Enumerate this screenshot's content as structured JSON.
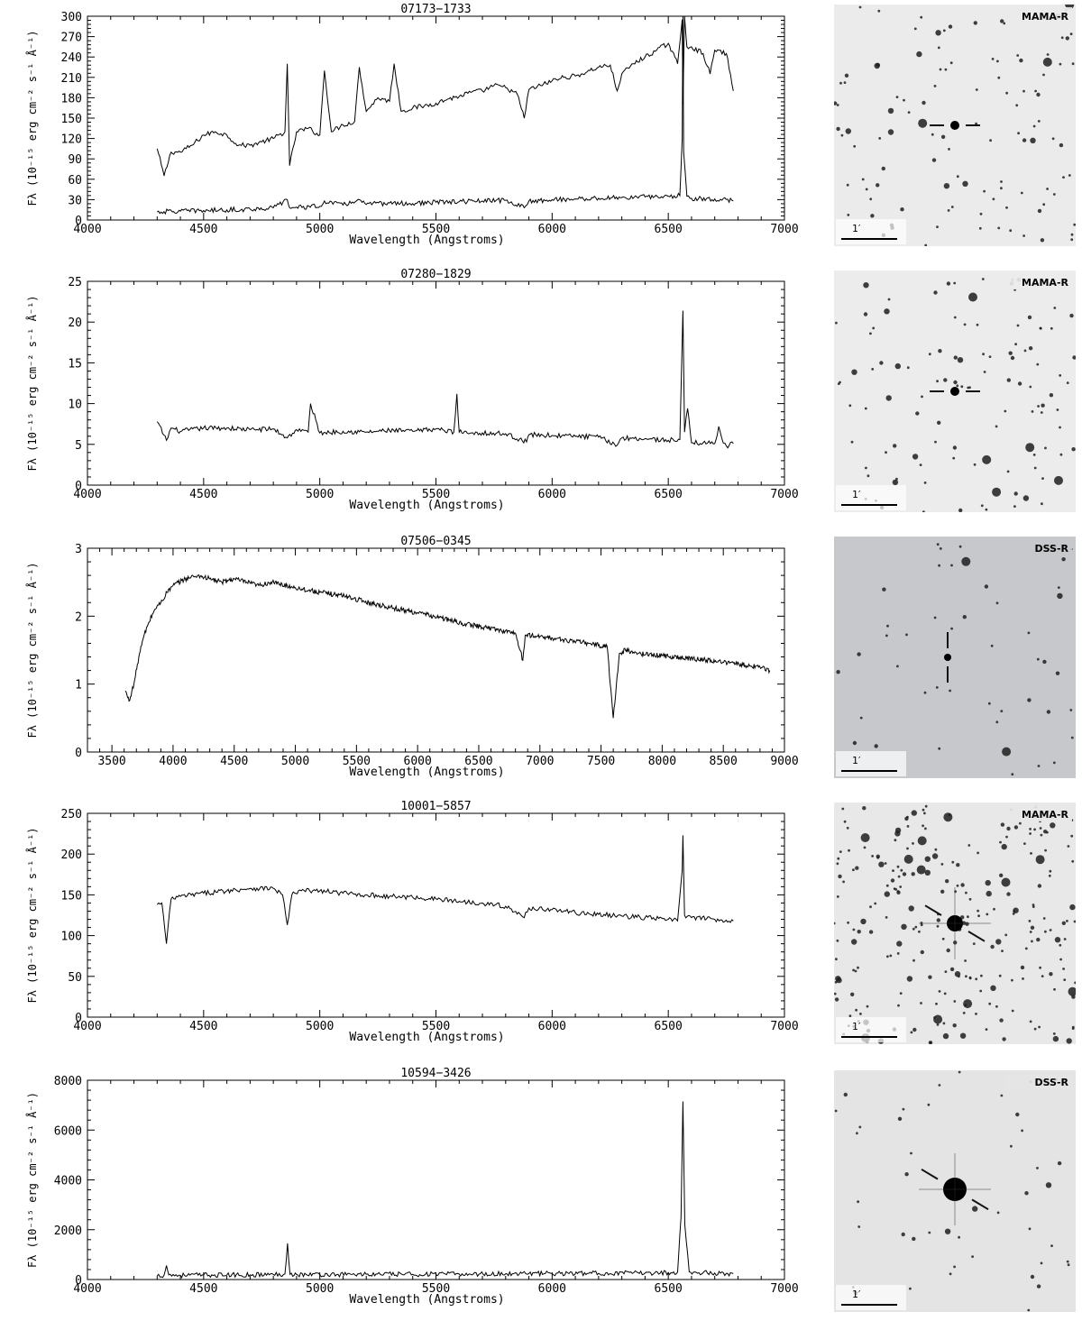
{
  "panels": [
    {
      "chart_data": {
        "type": "line",
        "title": "07173−1733",
        "xlabel": "Wavelength (Angstroms)",
        "ylabel": "Fλ (10⁻¹⁵ erg cm⁻² s⁻¹ Å⁻¹)",
        "xlim": [
          4000,
          7000
        ],
        "ylim": [
          0,
          300
        ],
        "xticks": [
          4000,
          4500,
          5000,
          5500,
          6000,
          6500,
          7000
        ],
        "yticks": [
          0,
          30,
          60,
          90,
          120,
          150,
          180,
          210,
          240,
          270,
          300
        ],
        "series": [
          {
            "x": [
              4300,
              4330,
              4360,
              4400,
              4450,
              4500,
              4550,
              4600,
              4650,
              4700,
              4750,
              4800,
              4850,
              4860,
              4870,
              4900,
              4950,
              5000,
              5020,
              5050,
              5100,
              5150,
              5170,
              5200,
              5250,
              5300,
              5320,
              5350,
              5400,
              5450,
              5500,
              5550,
              5600,
              5650,
              5700,
              5750,
              5800,
              5850,
              5880,
              5900,
              5950,
              6000,
              6050,
              6100,
              6150,
              6200,
              6250,
              6280,
              6300,
              6350,
              6400,
              6450,
              6500,
              6540,
              6560,
              6563,
              6570,
              6580,
              6600,
              6650,
              6680,
              6700,
              6750,
              6780
            ],
            "y": [
              105,
              65,
              100,
              100,
              110,
              125,
              130,
              125,
              110,
              110,
              115,
              120,
              130,
              230,
              80,
              130,
              135,
              125,
              220,
              130,
              140,
              145,
              225,
              160,
              180,
              175,
              230,
              160,
              165,
              168,
              172,
              178,
              182,
              188,
              190,
              198,
              195,
              185,
              150,
              192,
              198,
              205,
              210,
              212,
              218,
              225,
              228,
              190,
              215,
              230,
              240,
              250,
              260,
              230,
              295,
              170,
              300,
              255,
              255,
              245,
              215,
              250,
              245,
              190
            ]
          },
          {
            "x": [
              4300,
              4400,
              4500,
              4600,
              4700,
              4800,
              4860,
              4870,
              4900,
              5000,
              5020,
              5100,
              5170,
              5200,
              5300,
              5400,
              5500,
              5600,
              5700,
              5800,
              5880,
              5900,
              6000,
              6100,
              6200,
              6300,
              6400,
              6500,
              6550,
              6560,
              6563,
              6566,
              6580,
              6600,
              6700,
              6780
            ],
            "y": [
              12,
              13,
              14,
              15,
              16,
              18,
              30,
              18,
              19,
              20,
              28,
              22,
              30,
              23,
              25,
              24,
              26,
              27,
              28,
              29,
              18,
              28,
              30,
              31,
              32,
              33,
              34,
              35,
              36,
              120,
              300,
              100,
              35,
              32,
              31,
              28
            ]
          }
        ]
      },
      "finder": {
        "survey": "MAMA-R",
        "scale": "1′",
        "bg": "#ebebeb",
        "tick_style": "horizontal",
        "target_size": 5,
        "star_density": "medium"
      }
    },
    {
      "chart_data": {
        "type": "line",
        "title": "07280−1829",
        "xlabel": "Wavelength (Angstroms)",
        "ylabel": "Fλ (10⁻¹⁵ erg cm⁻² s⁻¹ Å⁻¹)",
        "xlim": [
          4000,
          7000
        ],
        "ylim": [
          0,
          25
        ],
        "xticks": [
          4000,
          4500,
          5000,
          5500,
          6000,
          6500,
          7000
        ],
        "yticks": [
          0,
          5,
          10,
          15,
          20,
          25
        ],
        "series": [
          {
            "x": [
              4300,
              4340,
              4360,
              4400,
              4500,
              4600,
              4700,
              4800,
              4860,
              4900,
              4950,
              4960,
              5000,
              5100,
              5200,
              5300,
              5400,
              5500,
              5577,
              5590,
              5600,
              5700,
              5800,
              5890,
              5900,
              6000,
              6100,
              6200,
              6280,
              6300,
              6400,
              6500,
              6550,
              6563,
              6570,
              6583,
              6600,
              6650,
              6700,
              6717,
              6730,
              6750,
              6780
            ],
            "y": [
              7.8,
              5.5,
              7,
              6.6,
              7,
              7,
              6.8,
              6.9,
              5.8,
              6.8,
              6.5,
              10,
              6.4,
              6.6,
              6.5,
              6.7,
              6.6,
              6.9,
              6.5,
              11.2,
              6.5,
              6.4,
              6.3,
              5.3,
              6.2,
              6.1,
              6.0,
              5.9,
              4.9,
              5.8,
              5.7,
              5.5,
              5.6,
              21.4,
              6.5,
              9.4,
              5.2,
              5.2,
              5.1,
              7.2,
              5.8,
              4.8,
              5.1
            ]
          }
        ]
      },
      "finder": {
        "survey": "MAMA-R",
        "scale": "1′",
        "bg": "#ececec",
        "tick_style": "horizontal",
        "target_size": 5,
        "star_density": "medium"
      }
    },
    {
      "chart_data": {
        "type": "line",
        "title": "07506−0345",
        "xlabel": "Wavelength (Angstroms)",
        "ylabel": "Fλ (10⁻¹⁵ erg cm⁻² s⁻¹ Å⁻¹)",
        "xlim": [
          3300,
          9000
        ],
        "ylim": [
          0,
          3
        ],
        "xticks": [
          3500,
          4000,
          4500,
          5000,
          5500,
          6000,
          6500,
          7000,
          7500,
          8000,
          8500,
          9000
        ],
        "xtick_labels": [
          "3500",
          "4000",
          "4500",
          "5000",
          "5500",
          "6000",
          "6500",
          "7000",
          "7500",
          "8000",
          "8500",
          "9000"
        ],
        "yticks": [
          0,
          1,
          2,
          3
        ],
        "series": [
          {
            "x": [
              3610,
              3640,
              3680,
              3720,
              3760,
              3800,
              3850,
              3900,
              3950,
              4000,
              4100,
              4200,
              4300,
              4400,
              4500,
              4600,
              4700,
              4800,
              5000,
              5200,
              5400,
              5600,
              5800,
              6000,
              6200,
              6400,
              6600,
              6800,
              6860,
              6880,
              7000,
              7200,
              7400,
              7550,
              7600,
              7650,
              7700,
              7800,
              8000,
              8200,
              8400,
              8600,
              8800,
              8880
            ],
            "y": [
              0.9,
              0.75,
              1.0,
              1.4,
              1.7,
              1.9,
              2.1,
              2.2,
              2.35,
              2.45,
              2.55,
              2.6,
              2.55,
              2.5,
              2.55,
              2.5,
              2.45,
              2.5,
              2.42,
              2.35,
              2.3,
              2.2,
              2.12,
              2.05,
              1.97,
              1.88,
              1.82,
              1.75,
              1.35,
              1.72,
              1.7,
              1.65,
              1.6,
              1.55,
              0.5,
              1.45,
              1.5,
              1.45,
              1.42,
              1.38,
              1.35,
              1.3,
              1.25,
              1.2
            ]
          }
        ]
      },
      "finder": {
        "survey": "DSS-R",
        "scale": "1′",
        "bg": "#c6c8cb",
        "tick_style": "vertical",
        "target_size": 4,
        "star_density": "low"
      }
    },
    {
      "chart_data": {
        "type": "line",
        "title": "10001−5857",
        "xlabel": "Wavelength (Angstroms)",
        "ylabel": "Fλ (10⁻¹⁵ erg cm⁻² s⁻¹ Å⁻¹)",
        "xlim": [
          4000,
          7000
        ],
        "ylim": [
          0,
          250
        ],
        "xticks": [
          4000,
          4500,
          5000,
          5500,
          6000,
          6500,
          7000
        ],
        "yticks": [
          0,
          50,
          100,
          150,
          200,
          250
        ],
        "series": [
          {
            "x": [
              4300,
              4320,
              4340,
              4360,
              4400,
              4500,
              4600,
              4700,
              4800,
              4840,
              4860,
              4880,
              4920,
              5000,
              5100,
              5200,
              5300,
              5400,
              5500,
              5600,
              5700,
              5800,
              5880,
              5900,
              6000,
              6100,
              6200,
              6300,
              6400,
              6500,
              6540,
              6560,
              6563,
              6570,
              6600,
              6700,
              6780
            ],
            "y": [
              138,
              140,
              90,
              145,
              148,
              152,
              155,
              158,
              158,
              150,
              113,
              150,
              155,
              155,
              152,
              150,
              148,
              147,
              145,
              142,
              140,
              136,
              122,
              134,
              132,
              128,
              126,
              124,
              122,
              120,
              118,
              180,
              223,
              125,
              122,
              120,
              118
            ]
          }
        ]
      },
      "finder": {
        "survey": "MAMA-R",
        "scale": "1′",
        "bg": "#e8e8e8",
        "tick_style": "diagonal",
        "target_size": 9,
        "star_density": "high"
      }
    },
    {
      "chart_data": {
        "type": "line",
        "title": "10594−3426",
        "xlabel": "Wavelength (Angstroms)",
        "ylabel": "Fλ (10⁻¹⁵ erg cm⁻² s⁻¹ Å⁻¹)",
        "xlim": [
          4000,
          7000
        ],
        "ylim": [
          0,
          8000
        ],
        "xticks": [
          4000,
          4500,
          5000,
          5500,
          6000,
          6500,
          7000
        ],
        "yticks": [
          0,
          2000,
          4000,
          6000,
          8000
        ],
        "series": [
          {
            "x": [
              4300,
              4330,
              4340,
              4350,
              4400,
              4500,
              4600,
              4700,
              4800,
              4850,
              4861,
              4872,
              4900,
              5000,
              5200,
              5400,
              5600,
              5800,
              5870,
              5880,
              5900,
              6000,
              6200,
              6400,
              6500,
              6540,
              6555,
              6563,
              6571,
              6590,
              6650,
              6700,
              6780
            ],
            "y": [
              150,
              180,
              560,
              190,
              170,
              180,
              180,
              190,
              200,
              220,
              1450,
              210,
              200,
              200,
              210,
              210,
              220,
              230,
              250,
              320,
              240,
              240,
              250,
              260,
              280,
              300,
              2500,
              7150,
              2200,
              300,
              270,
              260,
              240
            ]
          }
        ]
      },
      "finder": {
        "survey": "DSS-R",
        "scale": "1′",
        "bg": "#e4e4e4",
        "tick_style": "diagonal",
        "target_size": 13,
        "star_density": "low"
      }
    }
  ]
}
